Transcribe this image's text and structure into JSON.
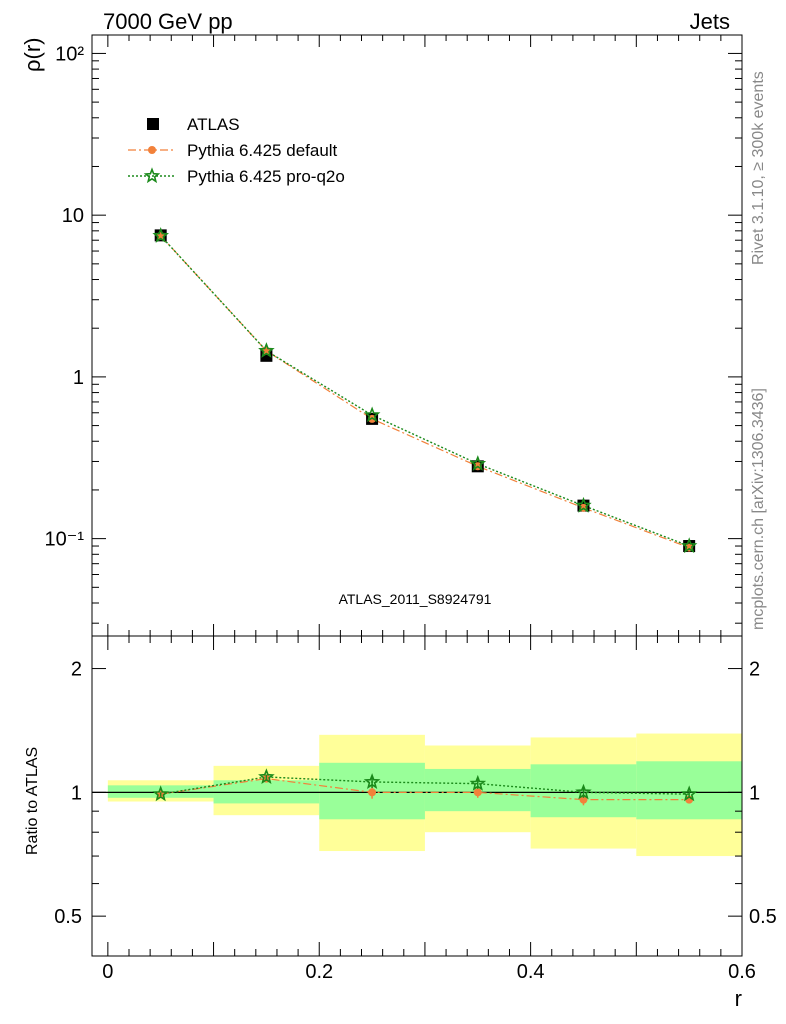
{
  "header": {
    "left_label": "7000 GeV pp",
    "right_label": "Jets"
  },
  "side_labels": {
    "top": "Rivet 3.1.10, ≥ 300k events",
    "bottom": "mcplots.cern.ch [arXiv:1306.3436]"
  },
  "colors": {
    "data": "#000000",
    "pythia_default": "#f2813a",
    "pythia_proq2o": "#1b8a1b",
    "band_inner": "#99ff99",
    "band_outer": "#ffff99"
  },
  "chart_data": [
    {
      "type": "line",
      "panel": "main",
      "ylabel": "ρ(r)",
      "xlabel": "",
      "yscale": "log",
      "xlim": [
        -0.015,
        0.6
      ],
      "ylim": [
        0.025,
        130
      ],
      "y_tick_labels": [
        "10⁻¹",
        "1",
        "10",
        "10²"
      ],
      "watermark": "ATLAS_2011_S8924791",
      "legend_position": "top-left",
      "x": [
        0.05,
        0.15,
        0.25,
        0.35,
        0.45,
        0.55
      ],
      "series": [
        {
          "name": "ATLAS",
          "marker": "square",
          "values": [
            7.5,
            1.35,
            0.55,
            0.28,
            0.16,
            0.09
          ]
        },
        {
          "name": "Pythia 6.425 default",
          "marker": "circle",
          "line": "dash-dot",
          "values": [
            7.45,
            1.45,
            0.55,
            0.28,
            0.155,
            0.088
          ]
        },
        {
          "name": "Pythia 6.425 pro-q2o",
          "marker": "star",
          "line": "dotted",
          "values": [
            7.45,
            1.45,
            0.58,
            0.29,
            0.16,
            0.09
          ]
        }
      ]
    },
    {
      "type": "line",
      "panel": "ratio",
      "ylabel": "Ratio to ATLAS",
      "xlabel": "r",
      "yscale": "log",
      "xlim": [
        -0.015,
        0.6
      ],
      "ylim": [
        0.4,
        2.4
      ],
      "x_tick_labels": [
        "0",
        "0.2",
        "0.4",
        "0.6"
      ],
      "y_tick_labels": [
        "0.5",
        "1",
        "2"
      ],
      "bands": [
        {
          "x0": 0.0,
          "x1": 0.1,
          "inner": [
            0.97,
            1.04
          ],
          "outer": [
            0.95,
            1.07
          ]
        },
        {
          "x0": 0.1,
          "x1": 0.2,
          "inner": [
            0.94,
            1.07
          ],
          "outer": [
            0.88,
            1.16
          ]
        },
        {
          "x0": 0.2,
          "x1": 0.3,
          "inner": [
            0.86,
            1.18
          ],
          "outer": [
            0.72,
            1.38
          ]
        },
        {
          "x0": 0.3,
          "x1": 0.4,
          "inner": [
            0.9,
            1.14
          ],
          "outer": [
            0.8,
            1.3
          ]
        },
        {
          "x0": 0.4,
          "x1": 0.5,
          "inner": [
            0.87,
            1.17
          ],
          "outer": [
            0.73,
            1.36
          ]
        },
        {
          "x0": 0.5,
          "x1": 0.6,
          "inner": [
            0.86,
            1.19
          ],
          "outer": [
            0.7,
            1.39
          ]
        }
      ],
      "x": [
        0.05,
        0.15,
        0.25,
        0.35,
        0.45,
        0.55
      ],
      "series": [
        {
          "name": "Pythia 6.425 default",
          "values": [
            0.99,
            1.08,
            1.0,
            1.0,
            0.96,
            0.96
          ],
          "errors": [
            0.01,
            0.015,
            0.035,
            0.03,
            0.03,
            0.02
          ]
        },
        {
          "name": "Pythia 6.425 pro-q2o",
          "values": [
            0.99,
            1.09,
            1.06,
            1.05,
            1.0,
            0.99
          ],
          "errors": [
            0.01,
            0.015,
            0.035,
            0.03,
            0.03,
            0.02
          ]
        }
      ]
    }
  ]
}
